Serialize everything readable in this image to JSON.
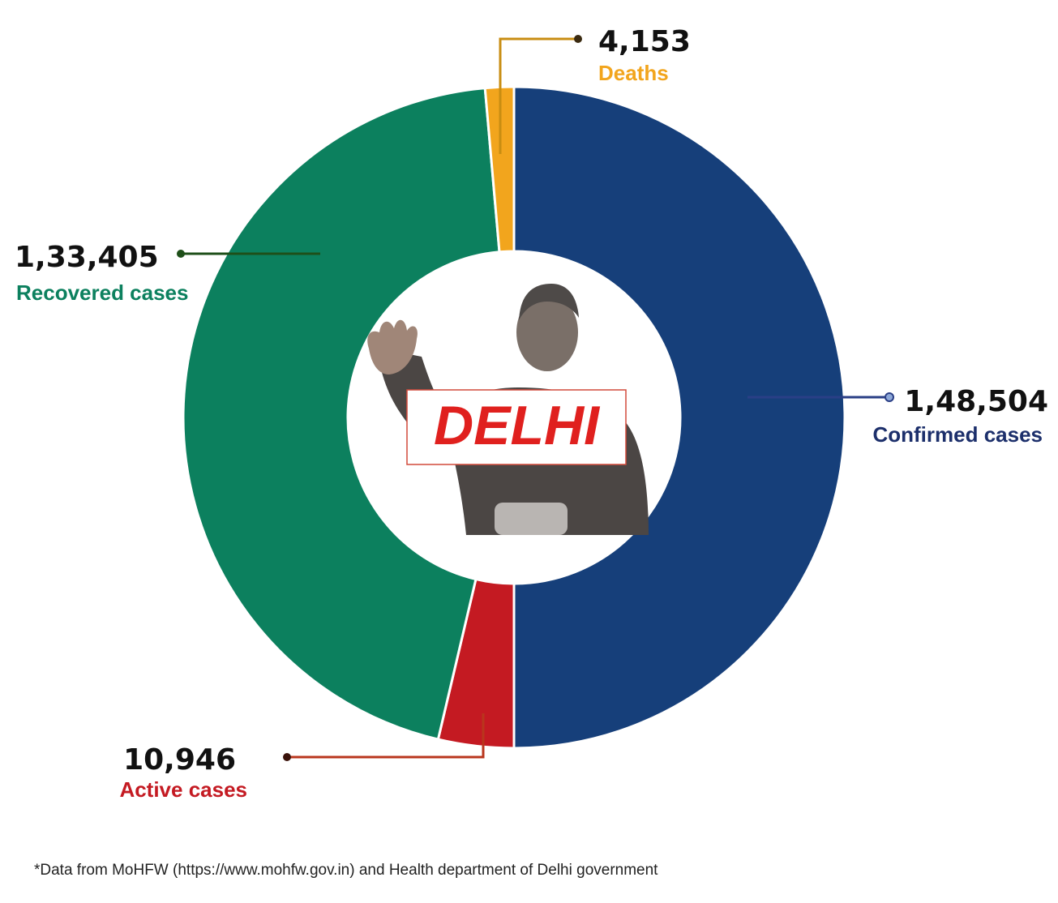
{
  "chart_data": {
    "type": "pie",
    "style": "donut",
    "center_badge": "DELHI",
    "slices": [
      {
        "key": "confirmed",
        "label": "Confirmed cases",
        "value_text": "1,48,504",
        "value": 148504,
        "color": "#163f7a"
      },
      {
        "key": "active",
        "label": "Active cases",
        "value_text": "10,946",
        "value": 10946,
        "color": "#c41a22"
      },
      {
        "key": "recovered",
        "label": "Recovered cases",
        "value_text": "1,33,405",
        "value": 133405,
        "color": "#0c805e"
      },
      {
        "key": "deaths",
        "label": "Deaths",
        "value_text": "4,153",
        "value": 4153,
        "color": "#f2a51d"
      }
    ],
    "label_colors": {
      "confirmed": "#1c2f6b",
      "active": "#c41a22",
      "recovered": "#0c805e",
      "deaths": "#f2a51d"
    },
    "leader_colors": {
      "confirmed": "#2a3f86",
      "active": "#b9361d",
      "recovered": "#1e4f19",
      "deaths": "#c88d12"
    }
  },
  "footnote": "*Data from MoHFW (https://www.mohfw.gov.in) and Health department of Delhi government"
}
